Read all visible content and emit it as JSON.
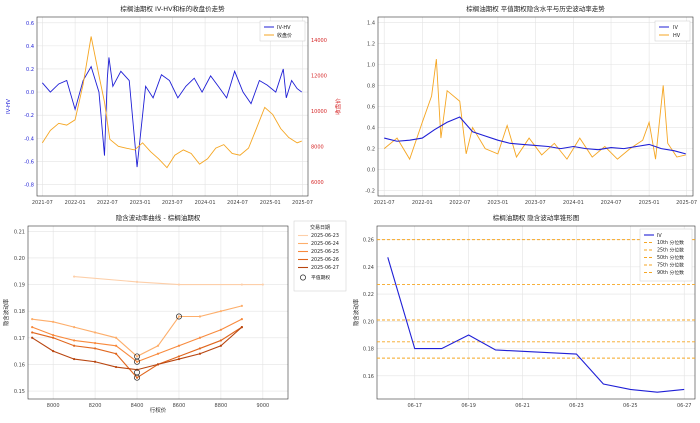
{
  "chart_data": [
    {
      "type": "line",
      "title": "棕榈油期权 IV-HV和标的收盘价走势",
      "xlabel": "",
      "ylabel": "IV-HV",
      "y2label": "收盘价",
      "x_ticks": [
        "2021-07",
        "2022-01",
        "2022-07",
        "2023-01",
        "2023-07",
        "2024-01",
        "2024-07",
        "2025-01",
        "2025-07"
      ],
      "y_ticks": [
        -0.8,
        -0.6,
        -0.4,
        -0.2,
        0.0,
        0.2,
        0.4,
        0.6
      ],
      "y2_ticks": [
        6000,
        8000,
        10000,
        12000,
        14000
      ],
      "ylim": [
        -0.9,
        0.65
      ],
      "y2lim": [
        5200,
        15300
      ],
      "xlim": [
        "2021-06-01",
        "2025-08-01"
      ],
      "legend": [
        "IV-HV",
        "收盘价"
      ],
      "legend_position": "top-right",
      "grid": true,
      "series": [
        {
          "name": "IV-HV",
          "axis": "left",
          "color": "#1f1fd6",
          "x": [
            "2021-07-01",
            "2021-08-15",
            "2021-10-01",
            "2021-11-15",
            "2022-01-01",
            "2022-02-15",
            "2022-04-01",
            "2022-05-15",
            "2022-06-15",
            "2022-07-01",
            "2022-07-10",
            "2022-08-01",
            "2022-09-15",
            "2022-11-01",
            "2022-12-15",
            "2023-02-01",
            "2023-03-15",
            "2023-05-01",
            "2023-06-15",
            "2023-08-01",
            "2023-09-15",
            "2023-11-01",
            "2023-12-15",
            "2024-02-01",
            "2024-03-15",
            "2024-05-01",
            "2024-06-15",
            "2024-08-01",
            "2024-09-15",
            "2024-11-01",
            "2024-12-15",
            "2025-02-01",
            "2025-03-15",
            "2025-04-01",
            "2025-05-01",
            "2025-06-01",
            "2025-06-27"
          ],
          "values": [
            0.08,
            0.0,
            0.07,
            0.1,
            -0.15,
            0.1,
            0.22,
            0.0,
            -0.55,
            0.12,
            0.3,
            0.05,
            0.18,
            0.1,
            -0.65,
            0.05,
            -0.05,
            0.15,
            0.1,
            -0.05,
            0.05,
            0.12,
            0.0,
            0.14,
            0.05,
            -0.05,
            0.18,
            0.0,
            -0.1,
            0.1,
            0.06,
            0.0,
            0.2,
            -0.05,
            0.1,
            0.03,
            0.0
          ]
        },
        {
          "name": "收盘价",
          "axis": "right",
          "color": "#f5a623",
          "x": [
            "2021-07-01",
            "2021-08-15",
            "2021-10-01",
            "2021-11-15",
            "2022-01-01",
            "2022-02-15",
            "2022-04-01",
            "2022-05-15",
            "2022-06-15",
            "2022-07-15",
            "2022-09-01",
            "2022-10-15",
            "2022-12-01",
            "2023-01-15",
            "2023-03-01",
            "2023-04-15",
            "2023-06-01",
            "2023-07-15",
            "2023-09-01",
            "2023-10-15",
            "2023-12-01",
            "2024-01-15",
            "2024-03-01",
            "2024-04-15",
            "2024-06-01",
            "2024-07-15",
            "2024-09-01",
            "2024-10-15",
            "2024-12-01",
            "2025-01-15",
            "2025-03-01",
            "2025-04-15",
            "2025-06-01",
            "2025-06-27"
          ],
          "values": [
            8200,
            8900,
            9300,
            9200,
            9500,
            11500,
            14200,
            12000,
            10500,
            8400,
            8000,
            7900,
            7800,
            8200,
            7700,
            7300,
            6800,
            7500,
            7800,
            7600,
            7000,
            7300,
            7900,
            8100,
            7600,
            7500,
            7900,
            9000,
            10200,
            9800,
            9000,
            8500,
            8200,
            8300
          ]
        }
      ]
    },
    {
      "type": "line",
      "title": "棕榈油期权 平值期权隐含水平与历史波动率走势",
      "xlabel": "",
      "ylabel": "",
      "x_ticks": [
        "2021-07",
        "2022-01",
        "2022-07",
        "2023-01",
        "2023-07",
        "2024-01",
        "2024-07",
        "2025-01",
        "2025-07"
      ],
      "y_ticks": [
        -0.2,
        0.0,
        0.2,
        0.4,
        0.6,
        0.8,
        1.0,
        1.2,
        1.4
      ],
      "ylim": [
        -0.25,
        1.45
      ],
      "xlim": [
        "2021-06-01",
        "2025-08-01"
      ],
      "legend": [
        "IV",
        "HV"
      ],
      "legend_position": "top-right",
      "grid": true,
      "series": [
        {
          "name": "IV",
          "color": "#1f1fd6",
          "x": [
            "2021-07-01",
            "2021-09-01",
            "2021-11-01",
            "2022-01-01",
            "2022-03-01",
            "2022-05-01",
            "2022-07-01",
            "2022-09-01",
            "2022-11-01",
            "2023-01-01",
            "2023-03-01",
            "2023-05-01",
            "2023-07-01",
            "2023-09-01",
            "2023-11-01",
            "2024-01-01",
            "2024-03-01",
            "2024-05-01",
            "2024-07-01",
            "2024-09-01",
            "2024-11-01",
            "2025-01-01",
            "2025-03-01",
            "2025-05-01",
            "2025-06-27"
          ],
          "values": [
            0.3,
            0.27,
            0.28,
            0.3,
            0.38,
            0.45,
            0.5,
            0.36,
            0.32,
            0.28,
            0.25,
            0.24,
            0.23,
            0.22,
            0.2,
            0.22,
            0.2,
            0.19,
            0.21,
            0.2,
            0.22,
            0.24,
            0.2,
            0.18,
            0.15
          ]
        },
        {
          "name": "HV",
          "color": "#f5a623",
          "x": [
            "2021-07-01",
            "2021-09-01",
            "2021-11-01",
            "2022-01-01",
            "2022-02-15",
            "2022-03-10",
            "2022-04-01",
            "2022-05-01",
            "2022-07-01",
            "2022-08-01",
            "2022-09-01",
            "2022-11-01",
            "2023-01-01",
            "2023-02-15",
            "2023-04-01",
            "2023-06-01",
            "2023-08-01",
            "2023-10-01",
            "2023-12-01",
            "2024-02-01",
            "2024-04-01",
            "2024-06-01",
            "2024-08-01",
            "2024-10-01",
            "2024-12-01",
            "2025-01-01",
            "2025-02-01",
            "2025-03-10",
            "2025-04-01",
            "2025-05-15",
            "2025-06-27"
          ],
          "values": [
            0.2,
            0.3,
            0.1,
            0.45,
            0.7,
            1.05,
            0.3,
            0.75,
            0.65,
            0.15,
            0.4,
            0.2,
            0.15,
            0.42,
            0.12,
            0.3,
            0.14,
            0.25,
            0.1,
            0.3,
            0.12,
            0.22,
            0.1,
            0.2,
            0.28,
            0.45,
            0.1,
            0.8,
            0.25,
            0.12,
            0.14
          ]
        }
      ]
    },
    {
      "type": "line",
      "title": "隐含波动率曲线 - 棕榈油期权",
      "xlabel": "行权价",
      "ylabel": "隐含波动率",
      "x_ticks": [
        8000,
        8200,
        8400,
        8600,
        8800,
        9000
      ],
      "y_ticks": [
        0.15,
        0.16,
        0.17,
        0.18,
        0.19,
        0.2,
        0.21
      ],
      "xlim": [
        7880,
        9120
      ],
      "ylim": [
        0.147,
        0.212
      ],
      "legend_title": "交易日期",
      "legend_position": "right",
      "grid": true,
      "atm_label": "平值期权",
      "series": [
        {
          "name": "2025-06-23",
          "color": "#fdcfa9",
          "x": [
            8100,
            8400,
            8600,
            8900,
            9000
          ],
          "values": [
            0.193,
            0.191,
            0.19,
            0.19,
            0.19
          ]
        },
        {
          "name": "2025-06-24",
          "color": "#fdae6b",
          "x": [
            7900,
            8000,
            8100,
            8200,
            8300,
            8400,
            8500,
            8600,
            8700,
            8800,
            8900
          ],
          "values": [
            0.177,
            0.176,
            0.174,
            0.172,
            0.17,
            0.163,
            0.167,
            0.178,
            0.178,
            0.18,
            0.182
          ]
        },
        {
          "name": "2025-06-25",
          "color": "#f88a3d",
          "x": [
            7900,
            8000,
            8100,
            8200,
            8300,
            8400,
            8500,
            8600,
            8700,
            8800,
            8900
          ],
          "values": [
            0.174,
            0.171,
            0.169,
            0.168,
            0.167,
            0.161,
            0.164,
            0.167,
            0.17,
            0.173,
            0.177
          ]
        },
        {
          "name": "2025-06-26",
          "color": "#e0661d",
          "x": [
            7900,
            8000,
            8100,
            8200,
            8300,
            8400,
            8500,
            8600,
            8700,
            8800,
            8900
          ],
          "values": [
            0.172,
            0.17,
            0.167,
            0.166,
            0.164,
            0.155,
            0.16,
            0.163,
            0.166,
            0.169,
            0.174
          ]
        },
        {
          "name": "2025-06-27",
          "color": "#b8450f",
          "x": [
            7900,
            8000,
            8100,
            8200,
            8300,
            8400,
            8500,
            8600,
            8700,
            8800,
            8900
          ],
          "values": [
            0.17,
            0.165,
            0.162,
            0.161,
            0.159,
            0.158,
            0.16,
            0.162,
            0.164,
            0.167,
            0.174
          ]
        }
      ],
      "atm_points": [
        {
          "x": 8600,
          "y": 0.178
        },
        {
          "x": 8400,
          "y": 0.163
        },
        {
          "x": 8400,
          "y": 0.161
        },
        {
          "x": 8400,
          "y": 0.157
        },
        {
          "x": 8400,
          "y": 0.155
        }
      ]
    },
    {
      "type": "line",
      "title": "棕榈油期权 隐含波动率锥形图",
      "xlabel": "",
      "ylabel": "隐含波动率",
      "x_ticks": [
        "06-17",
        "06-19",
        "06-21",
        "06-23",
        "06-25",
        "06-27"
      ],
      "y_ticks": [
        0.16,
        0.18,
        0.2,
        0.22,
        0.24,
        0.26
      ],
      "xlim": [
        -0.4,
        11.4
      ],
      "ylim": [
        0.143,
        0.27
      ],
      "legend_position": "top-right",
      "grid": true,
      "series": [
        {
          "name": "IV",
          "color": "#1f1fd6",
          "x": [
            0,
            1,
            2,
            3,
            4,
            5,
            6,
            7,
            8,
            9,
            10,
            11
          ],
          "values": [
            0.247,
            0.18,
            0.18,
            0.19,
            0.179,
            0.178,
            0.177,
            0.176,
            0.154,
            0.15,
            0.148,
            0.15
          ]
        }
      ],
      "quantiles": [
        {
          "name": "90th 分位数",
          "value": 0.26
        },
        {
          "name": "75th 分位数",
          "value": 0.227
        },
        {
          "name": "50th 分位数",
          "value": 0.201
        },
        {
          "name": "25th 分位数",
          "value": 0.185
        },
        {
          "name": "10th 分位数",
          "value": 0.173
        }
      ],
      "quantile_color": "#f5a623"
    }
  ]
}
